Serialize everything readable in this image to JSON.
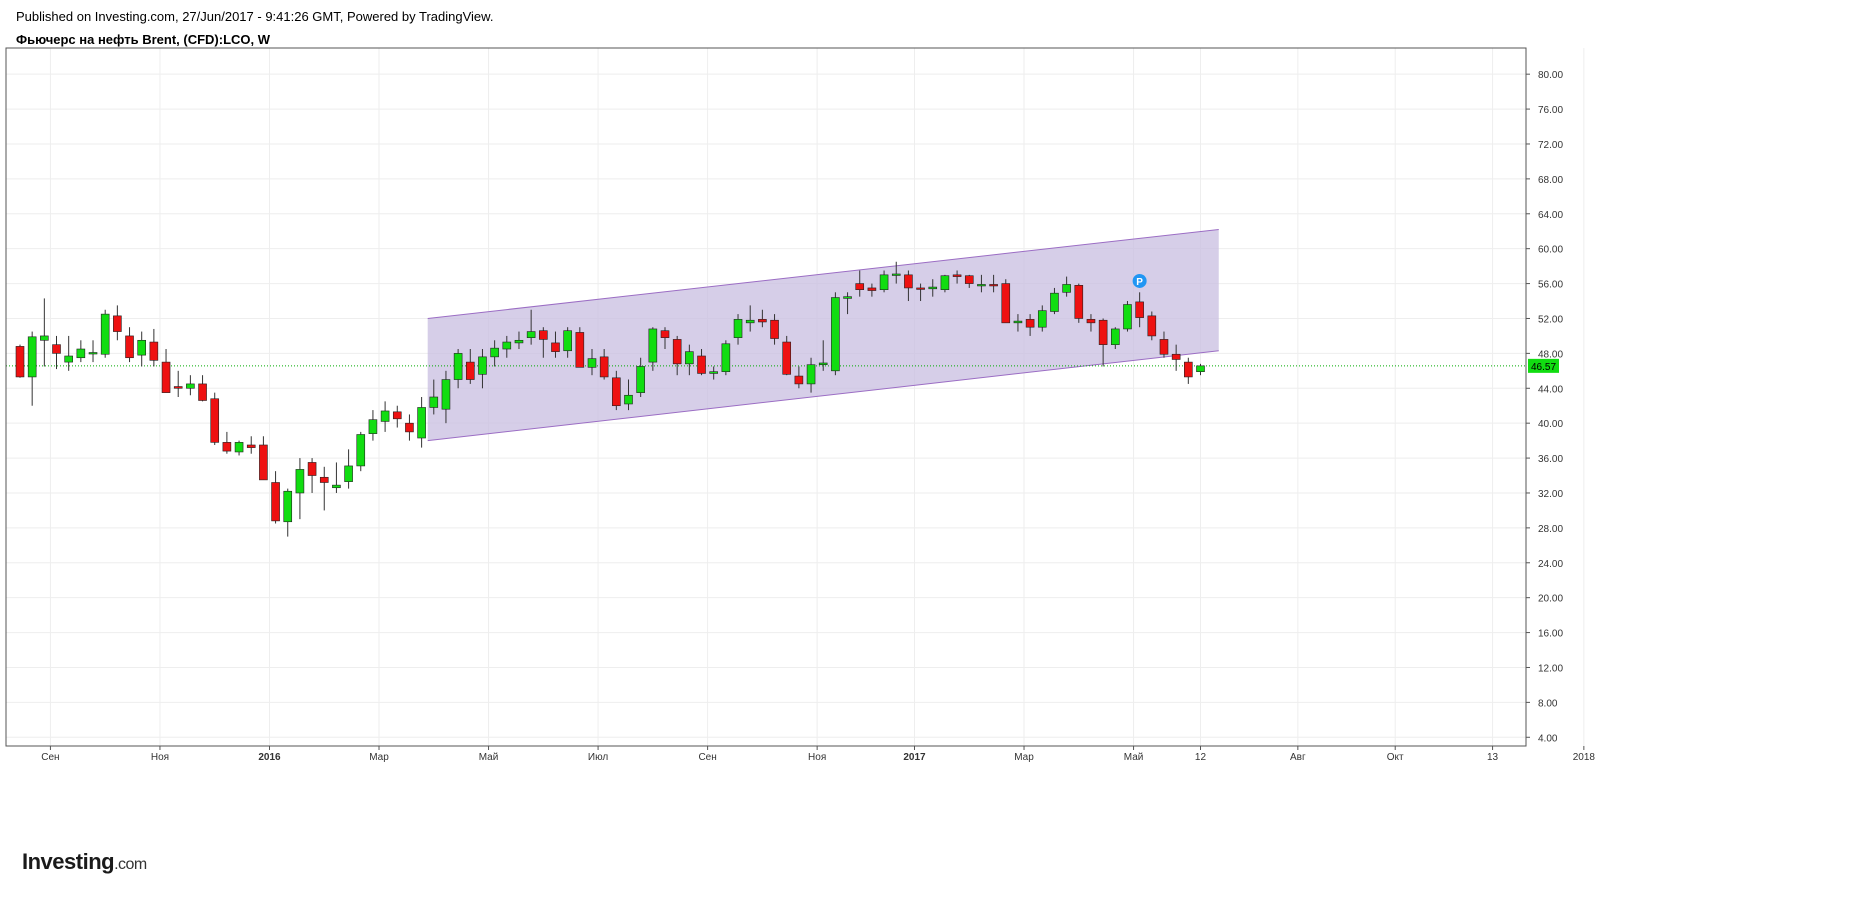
{
  "header": {
    "published": "Published on Investing.com, 27/Jun/2017 - 9:41:26 GMT, Powered by TradingView.",
    "symbol_title": "Фьючерс на нефть Brent, (CFD):LCO, W"
  },
  "logo": {
    "brand": "Investing",
    "domain": ".com"
  },
  "colors": {
    "up": "#11dd11",
    "down": "#ee1111",
    "channel_fill": "#c8bde0",
    "channel_line": "#9b6dc4",
    "last_price_bg": "#11dd11",
    "marker": "#2196f3"
  },
  "chart_data": {
    "type": "candlestick",
    "title": "Фьючерс на нефть Brent, (CFD):LCO, W",
    "ylim": [
      3.0,
      83.0
    ],
    "y_ticks": [
      "80.00",
      "76.00",
      "72.00",
      "68.00",
      "64.00",
      "60.00",
      "56.00",
      "52.00",
      "48.00",
      "44.00",
      "40.00",
      "36.00",
      "32.00",
      "28.00",
      "24.00",
      "20.00",
      "16.00",
      "12.00",
      "8.00",
      "4.00"
    ],
    "x_axis_labels": [
      {
        "label": "Сен",
        "week": 2.5
      },
      {
        "label": "Ноя",
        "week": 11.5
      },
      {
        "label": "2016",
        "week": 20.5
      },
      {
        "label": "Мар",
        "week": 29.5
      },
      {
        "label": "Май",
        "week": 38.5
      },
      {
        "label": "Июл",
        "week": 47.5
      },
      {
        "label": "Сен",
        "week": 56.5
      },
      {
        "label": "Ноя",
        "week": 65.5
      },
      {
        "label": "2017",
        "week": 73.5
      },
      {
        "label": "Мар",
        "week": 82.5
      },
      {
        "label": "Май",
        "week": 91.5
      },
      {
        "label": "12",
        "week": 97.0
      },
      {
        "label": "Авг",
        "week": 105.0
      },
      {
        "label": "Окт",
        "week": 113.0
      },
      {
        "label": "13",
        "week": 121.0
      },
      {
        "label": "2018",
        "week": 128.5
      }
    ],
    "bold_labels": [
      "2016",
      "2017"
    ],
    "last_price": "46.57",
    "channel": {
      "upper": [
        [
          33.5,
          52.0
        ],
        [
          98.5,
          62.2
        ]
      ],
      "lower": [
        [
          33.5,
          38.0
        ],
        [
          98.5,
          48.3
        ]
      ]
    },
    "marker": {
      "label": "P",
      "week": 92.0,
      "price": 56.3
    },
    "candles": [
      [
        48.8,
        49.0,
        45.2,
        45.3
      ],
      [
        45.3,
        50.5,
        42.0,
        49.9
      ],
      [
        49.5,
        54.3,
        46.5,
        50.0
      ],
      [
        49.0,
        50.0,
        46.2,
        48.0
      ],
      [
        47.0,
        50.0,
        46.0,
        47.7
      ],
      [
        47.5,
        49.5,
        47.0,
        48.5
      ],
      [
        48.0,
        49.5,
        47.0,
        48.1
      ],
      [
        47.9,
        53.0,
        47.5,
        52.5
      ],
      [
        52.3,
        53.5,
        49.5,
        50.5
      ],
      [
        50.0,
        51.0,
        47.0,
        47.5
      ],
      [
        47.8,
        50.5,
        46.5,
        49.5
      ],
      [
        49.3,
        50.8,
        46.5,
        47.2
      ],
      [
        47.0,
        48.5,
        43.5,
        43.5
      ],
      [
        44.2,
        46.0,
        43.0,
        44.0
      ],
      [
        44.0,
        45.5,
        43.2,
        44.5
      ],
      [
        44.5,
        45.5,
        42.5,
        42.6
      ],
      [
        42.8,
        43.5,
        37.5,
        37.8
      ],
      [
        37.8,
        39.0,
        36.5,
        36.8
      ],
      [
        36.7,
        38.0,
        36.3,
        37.8
      ],
      [
        37.5,
        38.5,
        36.5,
        37.2
      ],
      [
        37.5,
        38.5,
        33.5,
        33.5
      ],
      [
        33.2,
        34.5,
        28.5,
        28.8
      ],
      [
        28.7,
        32.5,
        27.0,
        32.2
      ],
      [
        32.0,
        36.0,
        29.0,
        34.7
      ],
      [
        35.5,
        36.0,
        32.0,
        34.0
      ],
      [
        33.8,
        35.0,
        30.0,
        33.2
      ],
      [
        32.6,
        35.5,
        32.0,
        32.9
      ],
      [
        33.3,
        37.0,
        32.5,
        35.1
      ],
      [
        35.1,
        39.0,
        34.5,
        38.7
      ],
      [
        38.8,
        41.5,
        38.0,
        40.4
      ],
      [
        40.2,
        42.5,
        39.0,
        41.4
      ],
      [
        41.3,
        42.0,
        39.5,
        40.5
      ],
      [
        40.0,
        41.0,
        38.0,
        39.0
      ],
      [
        38.3,
        43.0,
        37.2,
        41.8
      ],
      [
        41.8,
        45.0,
        41.0,
        43.0
      ],
      [
        41.6,
        46.0,
        40.0,
        45.0
      ],
      [
        45.0,
        48.5,
        44.0,
        48.0
      ],
      [
        47.0,
        48.5,
        44.5,
        45.0
      ],
      [
        45.6,
        48.5,
        44.0,
        47.6
      ],
      [
        47.6,
        49.5,
        46.5,
        48.6
      ],
      [
        48.5,
        50.0,
        47.5,
        49.3
      ],
      [
        49.2,
        50.5,
        48.5,
        49.5
      ],
      [
        49.8,
        53.0,
        49.0,
        50.5
      ],
      [
        50.6,
        51.0,
        47.5,
        49.6
      ],
      [
        49.2,
        50.5,
        47.5,
        48.2
      ],
      [
        48.3,
        51.0,
        47.5,
        50.6
      ],
      [
        50.4,
        51.0,
        46.5,
        46.4
      ],
      [
        46.4,
        48.5,
        45.5,
        47.4
      ],
      [
        47.6,
        48.5,
        45.0,
        45.3
      ],
      [
        45.2,
        46.0,
        41.5,
        42.0
      ],
      [
        42.2,
        45.0,
        41.5,
        43.2
      ],
      [
        43.5,
        47.5,
        43.0,
        46.5
      ],
      [
        47.0,
        51.0,
        46.0,
        50.8
      ],
      [
        50.6,
        51.0,
        48.5,
        49.8
      ],
      [
        49.6,
        50.0,
        45.5,
        46.8
      ],
      [
        46.8,
        49.0,
        45.5,
        48.2
      ],
      [
        47.7,
        48.5,
        45.5,
        45.7
      ],
      [
        45.7,
        46.5,
        45.0,
        45.9
      ],
      [
        45.9,
        49.5,
        45.5,
        49.1
      ],
      [
        49.8,
        52.5,
        49.0,
        51.9
      ],
      [
        51.5,
        53.5,
        50.5,
        51.8
      ],
      [
        51.9,
        53.0,
        51.0,
        51.6
      ],
      [
        51.8,
        52.5,
        49.0,
        49.7
      ],
      [
        49.3,
        50.0,
        45.5,
        45.6
      ],
      [
        45.4,
        46.5,
        44.0,
        44.5
      ],
      [
        44.5,
        47.5,
        43.5,
        46.7
      ],
      [
        46.7,
        49.5,
        46.0,
        46.9
      ],
      [
        46.0,
        55.0,
        45.5,
        54.4
      ],
      [
        54.3,
        55.0,
        52.5,
        54.5
      ],
      [
        56.0,
        57.5,
        54.5,
        55.3
      ],
      [
        55.5,
        56.0,
        54.5,
        55.2
      ],
      [
        55.3,
        57.5,
        55.0,
        57.0
      ],
      [
        57.0,
        58.5,
        56.0,
        57.1
      ],
      [
        57.0,
        57.5,
        54.0,
        55.5
      ],
      [
        55.5,
        56.0,
        54.0,
        55.4
      ],
      [
        55.4,
        56.5,
        54.5,
        55.6
      ],
      [
        55.3,
        57.0,
        55.0,
        56.9
      ],
      [
        57.0,
        57.5,
        56.0,
        56.8
      ],
      [
        56.9,
        57.0,
        55.5,
        56.0
      ],
      [
        55.9,
        57.0,
        55.0,
        55.9
      ],
      [
        55.9,
        57.0,
        55.0,
        55.8
      ],
      [
        56.0,
        56.5,
        51.5,
        51.5
      ],
      [
        51.5,
        52.5,
        50.5,
        51.7
      ],
      [
        51.9,
        52.5,
        50.0,
        51.0
      ],
      [
        51.0,
        53.5,
        50.5,
        52.9
      ],
      [
        52.8,
        55.5,
        52.5,
        54.9
      ],
      [
        55.0,
        56.8,
        54.5,
        55.9
      ],
      [
        55.8,
        56.0,
        51.5,
        52.0
      ],
      [
        51.9,
        52.5,
        50.5,
        51.5
      ],
      [
        51.8,
        52.0,
        46.5,
        49.0
      ],
      [
        49.0,
        51.0,
        48.5,
        50.8
      ],
      [
        50.8,
        54.0,
        50.5,
        53.6
      ],
      [
        53.9,
        55.0,
        51.0,
        52.1
      ],
      [
        52.3,
        52.8,
        49.5,
        50.0
      ],
      [
        49.6,
        50.5,
        47.5,
        47.9
      ],
      [
        47.9,
        49.0,
        46.0,
        47.3
      ],
      [
        47.0,
        47.5,
        44.5,
        45.3
      ],
      [
        45.9,
        46.8,
        45.5,
        46.57
      ]
    ]
  }
}
